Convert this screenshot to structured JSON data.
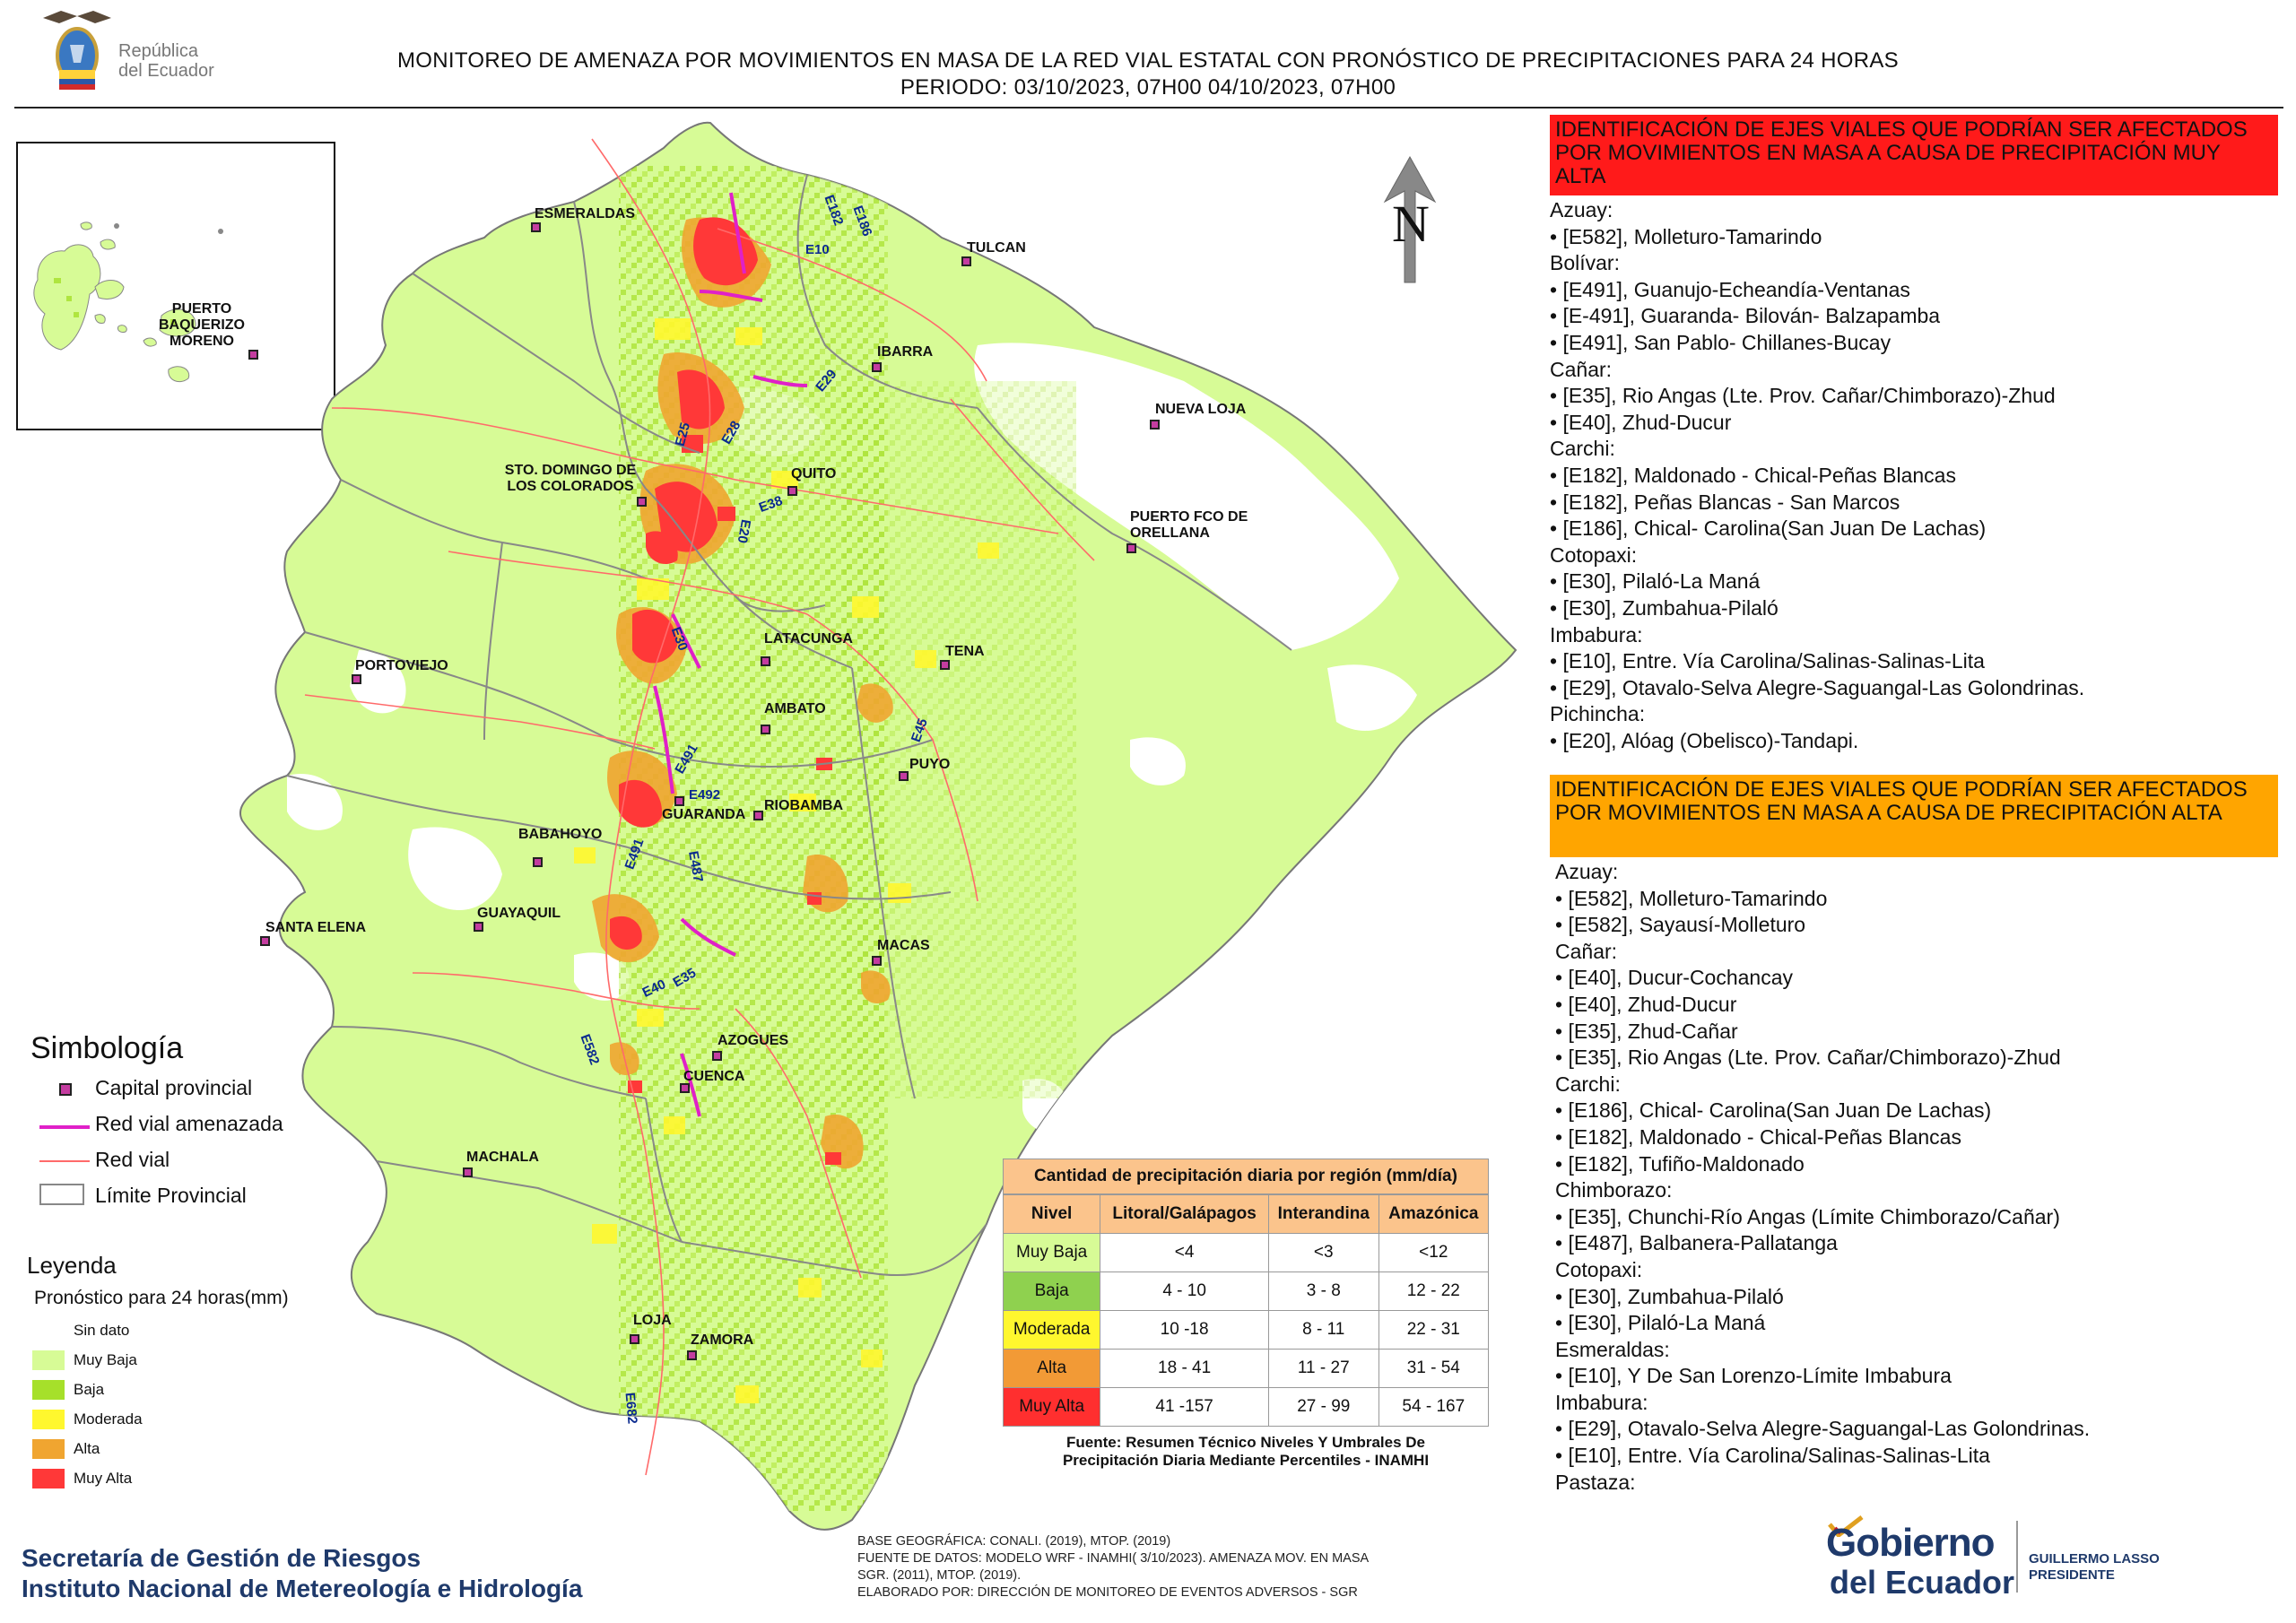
{
  "header": {
    "logo_line1": "República",
    "logo_line2": "del Ecuador",
    "title_line1": "MONITOREO DE AMENAZA POR MOVIMIENTOS EN MASA DE LA RED VIAL  ESTATAL  CON PRONÓSTICO  DE  PRECIPITACIONES PARA 24 HORAS",
    "title_line2": "PERIODO: 03/10/2023, 07H00 04/10/2023, 07H00"
  },
  "map": {
    "north_label": "N",
    "inset_city": "PUERTO BAQUERIZO MORENO",
    "cities": [
      "ESMERALDAS",
      "TULCAN",
      "IBARRA",
      "NUEVA LOJA",
      "QUITO",
      "STO. DOMINGO DE LOS COLORADOS",
      "PUERTO FCO DE ORELLANA",
      "LATACUNGA",
      "TENA",
      "PORTOVIEJO",
      "AMBATO",
      "PUYO",
      "GUARANDA",
      "RIOBAMBA",
      "BABAHOYO",
      "GUAYAQUIL",
      "SANTA ELENA",
      "MACAS",
      "AZOGUES",
      "CUENCA",
      "MACHALA",
      "LOJA",
      "ZAMORA"
    ],
    "road_labels": [
      "E182",
      "E186",
      "E10",
      "E29",
      "E28",
      "E25",
      "E38",
      "E20",
      "E30",
      "E45",
      "E491",
      "E492",
      "E491",
      "E487",
      "E40",
      "E35",
      "E582",
      "E682"
    ],
    "colors": {
      "muy_baja": "#d7fb96",
      "baja": "#a6e02a",
      "moderada": "#fff72e",
      "alta": "#f0a530",
      "muy_alta": "#ff3838",
      "red_vial_amenazada": "#e020c8",
      "red_vial": "#ff6a6a",
      "limite": "#888888"
    }
  },
  "simbologia": {
    "title": "Simbología",
    "items": [
      "Capital provincial",
      "Red vial amenazada",
      "Red vial",
      "Límite Provincial"
    ]
  },
  "leyenda": {
    "title": "Leyenda",
    "subtitle": "Pronóstico para 24 horas(mm)",
    "items": [
      "Sin dato",
      "Muy Baja",
      "Baja",
      "Moderada",
      "Alta",
      "Muy Alta"
    ]
  },
  "precip_table": {
    "title": "Cantidad de precipitación diaria por región (mm/día)",
    "headers": [
      "Nivel",
      "Litoral/Galápagos",
      "Interandina",
      "Amazónica"
    ],
    "rows": [
      [
        "Muy Baja",
        "<4",
        "<3",
        "<12"
      ],
      [
        "Baja",
        "4 - 10",
        "3 - 8",
        "12 - 22"
      ],
      [
        "Moderada",
        "10 -18",
        "8 - 11",
        "22 - 31"
      ],
      [
        "Alta",
        "18 - 41",
        "11 - 27",
        "31 - 54"
      ],
      [
        "Muy Alta",
        "41 -157",
        "27 - 99",
        "54 - 167"
      ]
    ],
    "source_line1": "Fuente: Resumen Técnico Niveles Y Umbrales De",
    "source_line2": "Precipitación Diaria Mediante Percentiles - INAMHI"
  },
  "sidebar": {
    "muy_alta_header": "IDENTIFICACIÓN DE EJES VIALES QUE PODRÍAN SER AFECTADOS POR MOVIMIENTOS EN MASA A CAUSA DE PRECIPITACIÓN MUY ALTA",
    "muy_alta_items": [
      "Azuay:",
      "• [E582], Molleturo-Tamarindo",
      "Bolívar:",
      "• [E491], Guanujo-Echeandía-Ventanas",
      "• [E-491], Guaranda- Bilován- Balzapamba",
      "• [E491], San Pablo- Chillanes-Bucay",
      "Cañar:",
      "• [E35], Rio Angas (Lte. Prov. Cañar/Chimborazo)-Zhud",
      "• [E40], Zhud-Ducur",
      "Carchi:",
      "• [E182], Maldonado - Chical-Peñas Blancas",
      "• [E182], Peñas Blancas - San Marcos",
      "• [E186], Chical- Carolina(San Juan De Lachas)",
      "Cotopaxi:",
      "• [E30], Pilaló-La Maná",
      "• [E30], Zumbahua-Pilaló",
      "Imbabura:",
      "• [E10], Entre. Vía Carolina/Salinas-Salinas-Lita",
      "• [E29], Otavalo-Selva Alegre-Saguangal-Las Golondrinas.",
      "Pichincha:",
      "• [E20], Alóag (Obelisco)-Tandapi."
    ],
    "alta_header": "IDENTIFICACIÓN DE EJES VIALES QUE PODRÍAN SER AFECTADOS POR MOVIMIENTOS EN MASA A CAUSA DE PRECIPITACIÓN  ALTA",
    "alta_items": [
      "Azuay:",
      "• [E582], Molleturo-Tamarindo",
      "• [E582], Sayausí-Molleturo",
      "Cañar:",
      "• [E40], Ducur-Cochancay",
      "• [E40], Zhud-Ducur",
      "• [E35], Zhud-Cañar",
      "• [E35], Rio Angas (Lte. Prov. Cañar/Chimborazo)-Zhud",
      "Carchi:",
      "• [E186], Chical- Carolina(San Juan De Lachas)",
      "• [E182], Maldonado - Chical-Peñas Blancas",
      "• [E182], Tufiño-Maldonado",
      "Chimborazo:",
      "• [E35], Chunchi-Río Angas (Límite Chimborazo/Cañar)",
      "• [E487], Balbanera-Pallatanga",
      "Cotopaxi:",
      "• [E30], Zumbahua-Pilaló",
      "• [E30], Pilaló-La Maná",
      "Esmeraldas:",
      "• [E10], Y De San Lorenzo-Límite Imbabura",
      "Imbabura:",
      "• [E29], Otavalo-Selva Alegre-Saguangal-Las Golondrinas.",
      "• [E10], Entre. Vía Carolina/Salinas-Salinas-Lita",
      "Pastaza:"
    ]
  },
  "footer": {
    "institution1": "Secretaría de Gestión de Riesgos",
    "institution2": "Instituto Nacional de Metereología e Hidrología",
    "note1": "BASE GEOGRÁFICA: CONALI. (2019), MTOP. (2019)",
    "note2": "FUENTE DE DATOS: MODELO WRF - INAMHI( 3/10/2023).  AMENAZA MOV. EN MASA",
    "note3": "SGR. (2011), MTOP. (2019).",
    "note4": "ELABORADO POR: DIRECCIÓN DE MONITOREO DE EVENTOS ADVERSOS - SGR",
    "gob_line1": "Gobierno",
    "gob_line2": "del Ecuador",
    "president_name": "GUILLERMO LASSO",
    "president_title": "PRESIDENTE"
  }
}
